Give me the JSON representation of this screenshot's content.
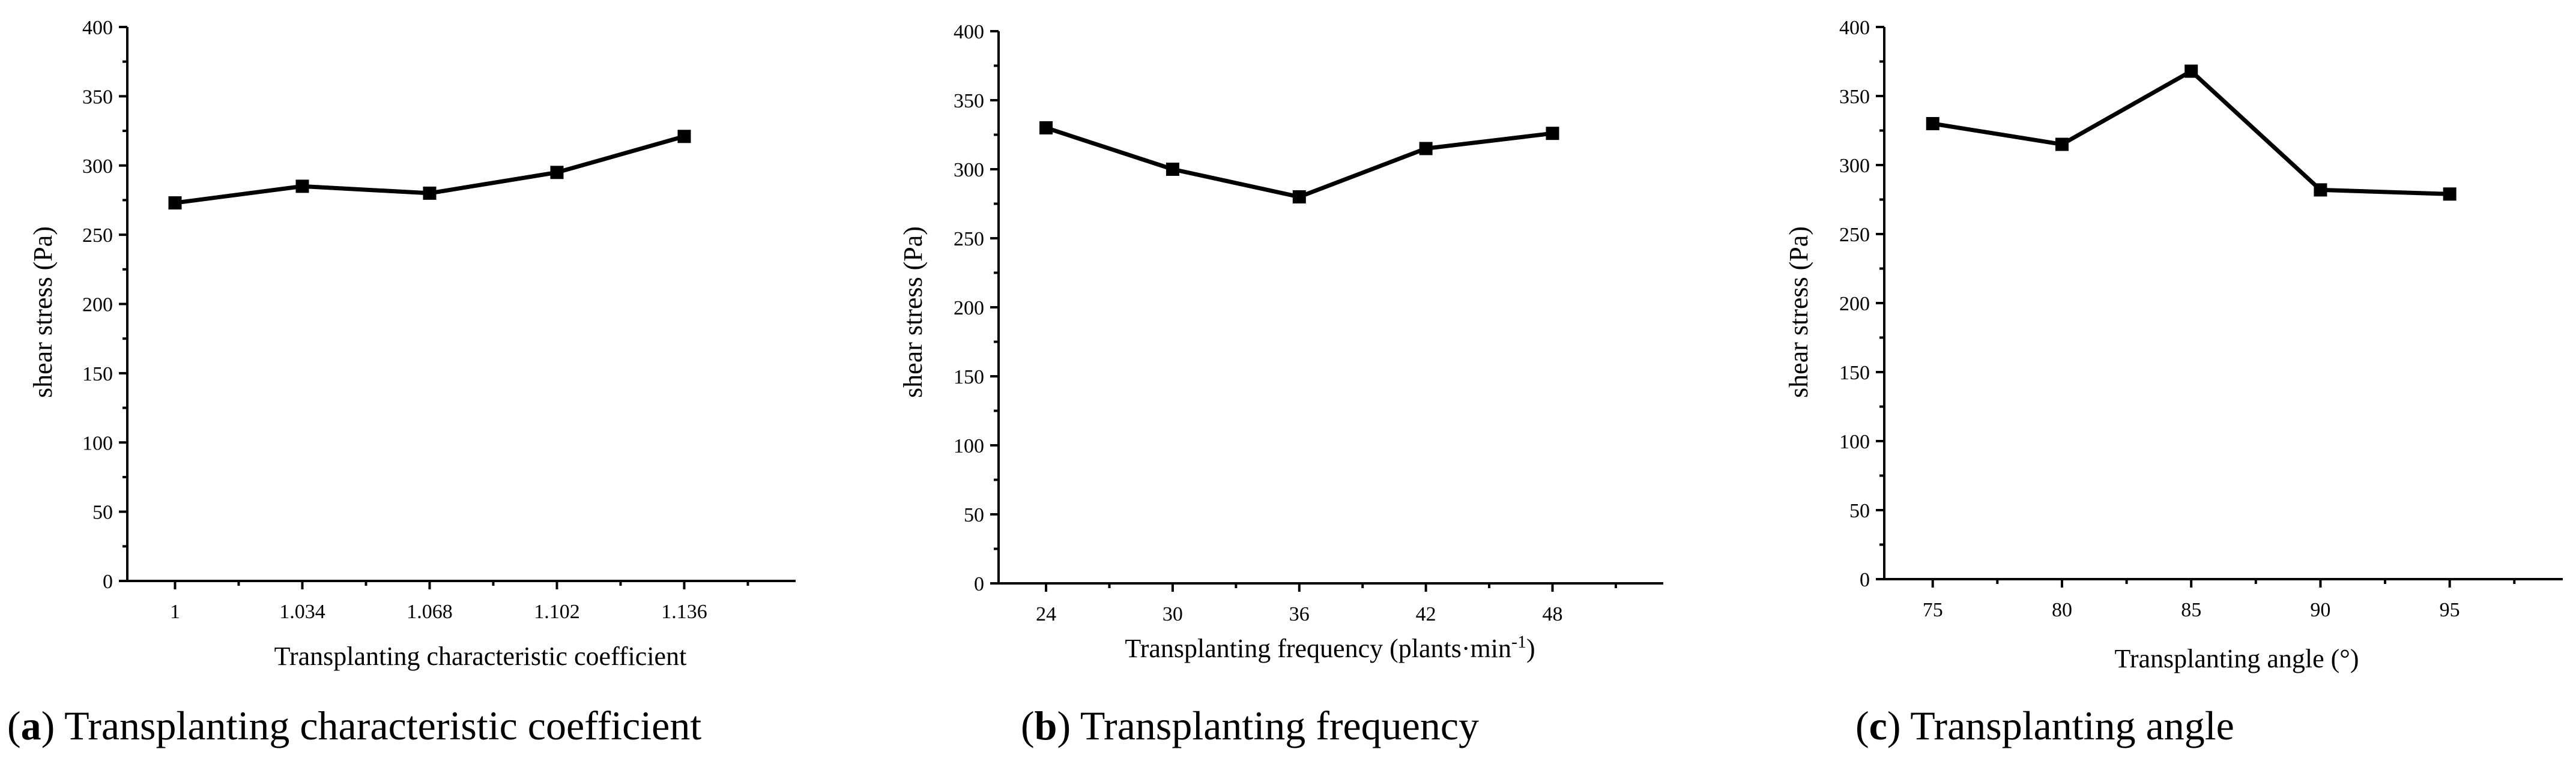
{
  "figure_captions": [
    {
      "letter": "a",
      "open": "(",
      "close": ")",
      "text": " Transplanting characteristic coefficient"
    },
    {
      "letter": "b",
      "open": "(",
      "close": ")",
      "text": " Transplanting frequency"
    },
    {
      "letter": "c",
      "open": "(",
      "close": ")",
      "text": " Transplanting angle"
    }
  ],
  "chart_data": [
    {
      "type": "line",
      "title": "",
      "xlabel": "Transplanting characteristic coefficient",
      "ylabel": "shear stress (Pa)",
      "categories": [
        "1",
        "1.034",
        "1.068",
        "1.102",
        "1.136"
      ],
      "series": [
        {
          "name": "shear stress",
          "values": [
            273,
            285,
            280,
            295,
            321
          ]
        }
      ],
      "yticks": [
        0,
        50,
        100,
        150,
        200,
        250,
        300,
        350,
        400
      ],
      "ylim": [
        0,
        400
      ],
      "grid": false,
      "marker": "square"
    },
    {
      "type": "line",
      "title": "",
      "xlabel": "Transplanting frequency (plants·min",
      "xlabel_superscript": "-1",
      "xlabel_suffix": ")",
      "ylabel": "shear stress (Pa)",
      "categories": [
        "24",
        "30",
        "36",
        "42",
        "48"
      ],
      "series": [
        {
          "name": "shear stress",
          "values": [
            330,
            300,
            280,
            315,
            326
          ]
        }
      ],
      "yticks": [
        0,
        50,
        100,
        150,
        200,
        250,
        300,
        350,
        400
      ],
      "ylim": [
        0,
        400
      ],
      "grid": false,
      "marker": "square"
    },
    {
      "type": "line",
      "title": "",
      "xlabel": "Transplanting angle (°)",
      "ylabel": "shear stress (Pa)",
      "categories": [
        "75",
        "80",
        "85",
        "90",
        "95"
      ],
      "series": [
        {
          "name": "shear stress",
          "values": [
            330,
            315,
            368,
            282,
            279
          ]
        }
      ],
      "yticks": [
        0,
        50,
        100,
        150,
        200,
        250,
        300,
        350,
        400
      ],
      "ylim": [
        0,
        400
      ],
      "grid": false,
      "marker": "square"
    }
  ]
}
